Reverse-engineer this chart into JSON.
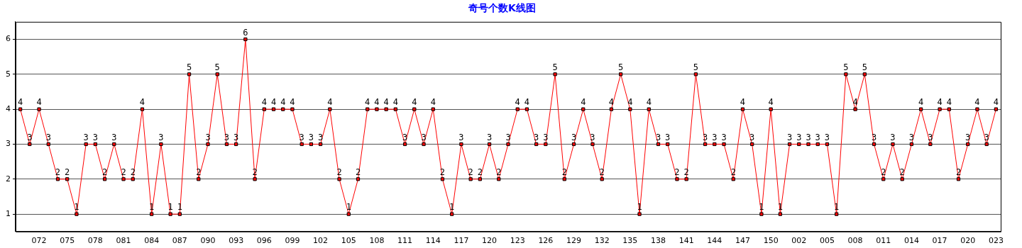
{
  "chart_data": {
    "type": "line",
    "title": "奇号个数K线图",
    "categories": [
      null,
      null,
      "072",
      null,
      null,
      "075",
      null,
      null,
      "078",
      null,
      null,
      "081",
      null,
      null,
      "084",
      null,
      null,
      "087",
      null,
      null,
      "090",
      null,
      null,
      "093",
      null,
      null,
      "096",
      null,
      null,
      "099",
      null,
      null,
      "102",
      null,
      null,
      "105",
      null,
      null,
      "108",
      null,
      null,
      "111",
      null,
      null,
      "114",
      null,
      null,
      "117",
      null,
      null,
      "120",
      null,
      null,
      "123",
      null,
      null,
      "126",
      null,
      null,
      "129",
      null,
      null,
      "132",
      null,
      null,
      "135",
      null,
      null,
      "138",
      null,
      null,
      "141",
      null,
      null,
      "144",
      null,
      null,
      "147",
      null,
      null,
      "150",
      null,
      null,
      "002",
      null,
      null,
      "005",
      null,
      null,
      "008",
      null,
      null,
      "011",
      null,
      null,
      "014",
      null,
      null,
      "017",
      null,
      null,
      "020",
      null,
      null,
      "023"
    ],
    "series": [
      {
        "color": "#ff0000",
        "values": [
          4,
          3,
          4,
          3,
          2,
          2,
          1,
          3,
          3,
          2,
          3,
          2,
          2,
          4,
          1,
          3,
          1,
          1,
          5,
          2,
          3,
          5,
          3,
          3,
          6,
          2,
          4,
          4,
          4,
          4,
          3,
          3,
          3,
          4,
          2,
          1,
          2,
          4,
          4,
          4,
          4,
          3,
          4,
          3,
          4,
          2,
          1,
          3,
          2,
          2,
          3,
          2,
          3,
          4,
          4,
          3,
          3,
          5,
          2,
          3,
          4,
          3,
          2,
          4,
          5,
          4,
          1,
          4,
          3,
          3,
          2,
          2,
          5,
          3,
          3,
          3,
          2,
          4,
          3,
          1,
          4,
          1,
          3,
          3,
          3,
          3,
          3,
          1,
          5,
          4,
          5,
          3,
          2,
          3,
          2,
          3,
          4,
          3,
          4,
          4,
          2,
          3,
          4,
          3,
          4
        ]
      }
    ],
    "ylim": [
      0.5,
      6.5
    ],
    "yticks": [
      1,
      2,
      3,
      4,
      5,
      6
    ],
    "grid": "y",
    "marker": "square",
    "data_labels": true,
    "legend": false
  }
}
